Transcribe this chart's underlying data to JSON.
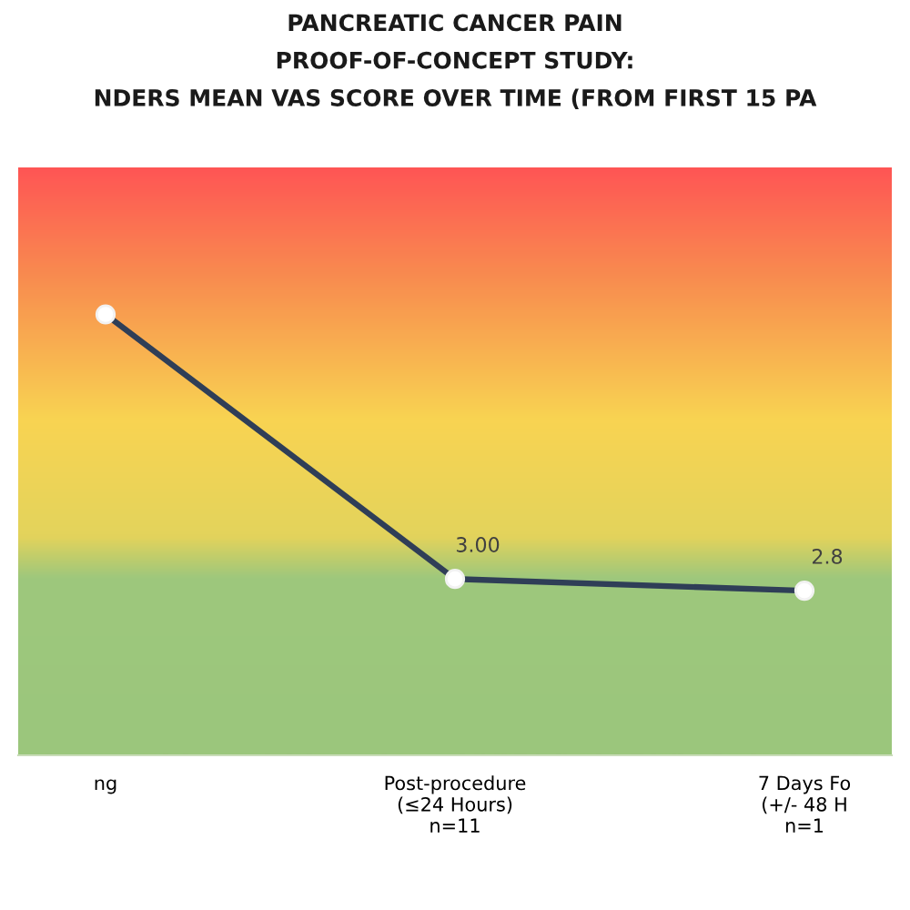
{
  "chart_data": {
    "type": "line",
    "title": "PANCREATIC CANCER PAIN\nPROOF-OF-CONCEPT STUDY:\nNDERS MEAN VAS SCORE OVER TIME (FROM FIRST 15 PA",
    "categories": [
      "ng",
      "Post-procedure\n(≤24 Hours)\nn=11",
      "7 Days Fo\n(+/- 48 H\nn=1"
    ],
    "values": [
      7.5,
      3.0,
      2.8
    ],
    "value_labels": [
      null,
      "3.00",
      "2.8"
    ],
    "color": "#2f3e57",
    "marker": "circle",
    "ylim": [
      0,
      10
    ],
    "tick_labels": "x"
  }
}
